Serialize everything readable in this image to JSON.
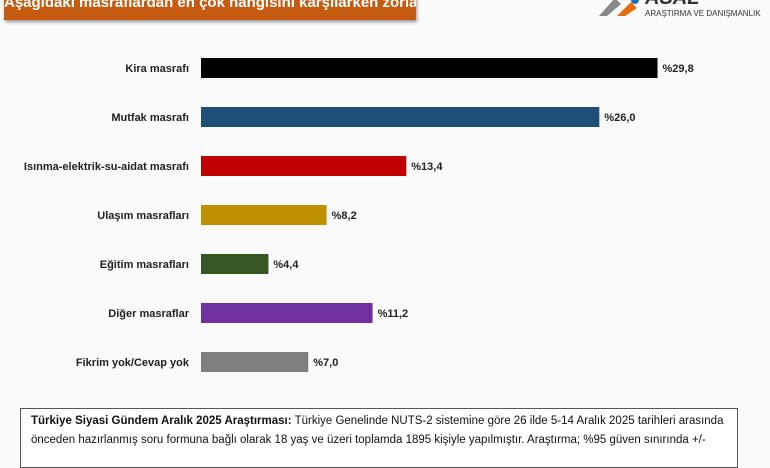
{
  "header": {
    "title": "Aşağıdaki masraflardan en çok hangisini karşılarken zorlanıyorsunuz?"
  },
  "logo": {
    "name": "ASAL",
    "tagline": "ARAŞTIRMA VE DANIŞMANLIK"
  },
  "chart_data": {
    "type": "bar",
    "orientation": "horizontal",
    "categories": [
      "Kira masrafı",
      "Mutfak masrafı",
      "Isınma-elektrik-su-aidat masrafı",
      "Ulaşım masrafları",
      "Eğitim masrafları",
      "Diğer masraflar",
      "Fikrim yok/Cevap yok"
    ],
    "values": [
      29.8,
      26.0,
      13.4,
      8.2,
      4.4,
      11.2,
      7.0
    ],
    "labels": [
      "%29,8",
      "%26,0",
      "%13,4",
      "%8,2",
      "%4,4",
      "%11,2",
      "%7,0"
    ],
    "colors": [
      "#000000",
      "#1f4e79",
      "#c00000",
      "#bf9000",
      "#375623",
      "#7030a0",
      "#7f7f7f"
    ],
    "xlim": [
      0,
      30
    ],
    "grid": false
  },
  "footer": {
    "title": "Türkiye Siyasi Gündem Aralık 2025 Araştırması:",
    "text": " Türkiye Genelinde NUTS-2 sistemine göre 26 ilde 5-14 Aralık 2025 tarihleri arasında önceden hazırlanmış soru formuna bağlı olarak 18 yaş ve üzeri toplamda 1895 kişiyle yapılmıştır. Araştırma; %95 güven sınırında +/-"
  }
}
